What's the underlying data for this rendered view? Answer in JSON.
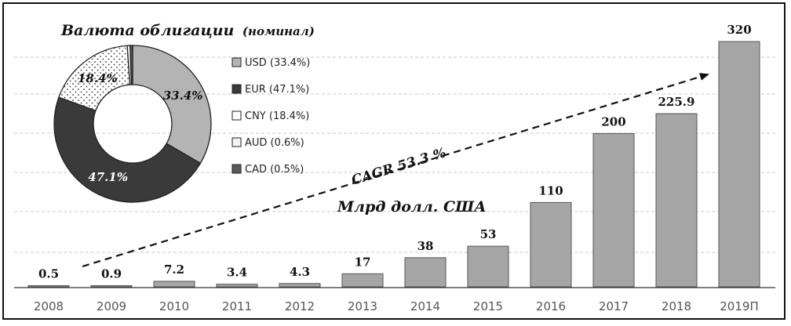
{
  "chart_data": [
    {
      "type": "bar",
      "categories": [
        "2008",
        "2009",
        "2010",
        "2011",
        "2012",
        "2013",
        "2014",
        "2015",
        "2016",
        "2017",
        "2018",
        "2019П"
      ],
      "values": [
        0.5,
        0.9,
        7.2,
        3.4,
        4.3,
        17,
        38,
        53,
        110,
        200,
        225.9,
        320
      ],
      "value_labels": [
        "0.5",
        "0.9",
        "7.2",
        "3.4",
        "4.3",
        "17",
        "38",
        "53",
        "110",
        "200",
        "225.9",
        "320"
      ],
      "unit_label": "Млрд долл. США",
      "annotation": "CAGR 53.3 %",
      "ylim": [
        0,
        350
      ],
      "grid": true,
      "colors": {
        "bar": "#a6a6a6",
        "bar_stroke": "#555555",
        "grid": "#c8c8c8"
      }
    },
    {
      "type": "pie",
      "title": "Валюта облигации",
      "title_suffix": "(номинал)",
      "legend_position": "right",
      "slices": [
        {
          "name": "USD",
          "value": 33.4,
          "legend": "USD (33.4%)",
          "label": "33.4%",
          "color": "#b4b4b4",
          "pattern": "solid"
        },
        {
          "name": "EUR",
          "value": 47.1,
          "legend": "EUR (47.1%)",
          "label": "47.1%",
          "color": "#3a3a3a",
          "pattern": "solid"
        },
        {
          "name": "CNY",
          "value": 18.4,
          "legend": "CNY (18.4%)",
          "label": "18.4%",
          "color": "#ffffff",
          "pattern": "dots"
        },
        {
          "name": "AUD",
          "value": 0.6,
          "legend": "AUD (0.6%)",
          "label": "",
          "color": "#f2f2f2",
          "pattern": "solid"
        },
        {
          "name": "CAD",
          "value": 0.5,
          "legend": "CAD (0.5%)",
          "label": "",
          "color": "#5a5a5a",
          "pattern": "solid"
        }
      ]
    }
  ]
}
